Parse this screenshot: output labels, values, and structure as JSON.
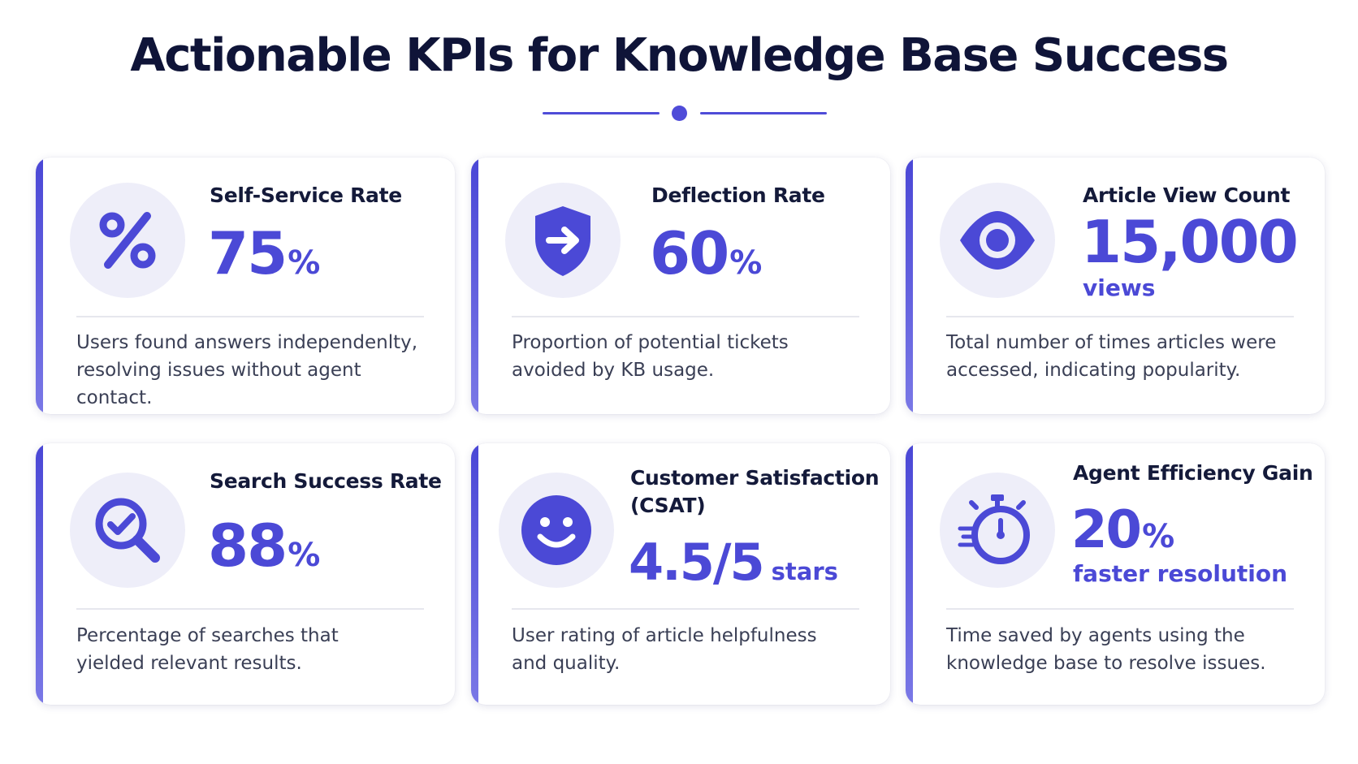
{
  "header": {
    "title": "Actionable KPIs for Knowledge Base Success"
  },
  "colors": {
    "accent": "#4b49d6",
    "icon_bg": "#eeeef9",
    "text_dark": "#141a3a"
  },
  "cards": [
    {
      "title": "Self-Service Rate",
      "value": "75",
      "unit": "%",
      "icon": "percent-icon",
      "description_lines": [
        "Users found answers independenlty,",
        "resolving issues without agent contact."
      ]
    },
    {
      "title": "Deflection Rate",
      "value": "60",
      "unit": "%",
      "icon": "shield-arrow-icon",
      "description_lines": [
        "Proportion of potential tickets",
        "avoided by KB usage."
      ]
    },
    {
      "title": "Article View Count",
      "value": "15,000",
      "subtext": "views",
      "icon": "eye-icon",
      "description_lines": [
        "Total number of times articles were",
        "accessed, indicating popularity."
      ]
    },
    {
      "title": "Search Success Rate",
      "value": "88",
      "unit": "%",
      "icon": "magnifier-check-icon",
      "description_lines": [
        "Percentage of searches that",
        "yielded relevant results."
      ]
    },
    {
      "title_lines": [
        "Customer Satisfaction",
        "(CSAT)"
      ],
      "value": "4.5/5",
      "unit": "stars",
      "icon": "smiley-icon",
      "description_lines": [
        "User rating of article helpfulness",
        "and quality."
      ]
    },
    {
      "title": "Agent Efficiency Gain",
      "value": "20",
      "unit": "%",
      "subtext": "faster resolution",
      "icon": "stopwatch-icon",
      "description_lines": [
        "Time saved by agents using the",
        "knowledge base to resolve issues."
      ]
    }
  ]
}
